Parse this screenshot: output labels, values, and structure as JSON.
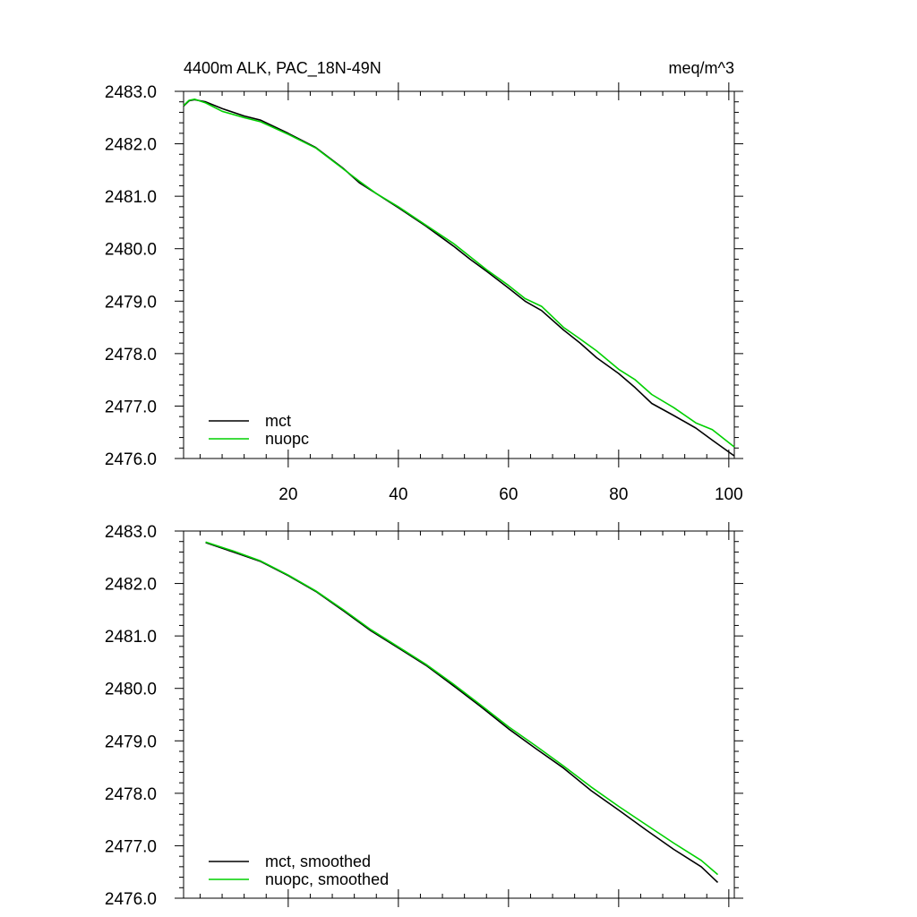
{
  "title_left": "4400m ALK, PAC_18N-49N",
  "title_right": "meq/m^3",
  "colors": {
    "mct": "#000000",
    "nuopc": "#00d000"
  },
  "chart_data": [
    {
      "type": "line",
      "title": "4400m ALK, PAC_18N-49N",
      "units": "meq/m^3",
      "xlim": [
        1,
        101
      ],
      "ylim": [
        2476.0,
        2483.0
      ],
      "xticks": [
        20,
        40,
        60,
        80,
        100
      ],
      "xtick_labels": [
        "20",
        "40",
        "60",
        "80",
        "100"
      ],
      "yticks": [
        2476.0,
        2477.0,
        2478.0,
        2479.0,
        2480.0,
        2481.0,
        2482.0,
        2483.0
      ],
      "ytick_labels": [
        "2476.0",
        "2477.0",
        "2478.0",
        "2479.0",
        "2480.0",
        "2481.0",
        "2482.0",
        "2483.0"
      ],
      "grid": false,
      "legend_position": "bottom-left",
      "series": [
        {
          "name": "mct",
          "color": "#000000",
          "points": [
            [
              1,
              2482.72
            ],
            [
              2,
              2482.82
            ],
            [
              3,
              2482.84
            ],
            [
              5,
              2482.8
            ],
            [
              8,
              2482.67
            ],
            [
              12,
              2482.53
            ],
            [
              15,
              2482.45
            ],
            [
              20,
              2482.2
            ],
            [
              25,
              2481.93
            ],
            [
              30,
              2481.53
            ],
            [
              33,
              2481.25
            ],
            [
              36,
              2481.05
            ],
            [
              40,
              2480.78
            ],
            [
              45,
              2480.43
            ],
            [
              50,
              2480.05
            ],
            [
              53,
              2479.8
            ],
            [
              56,
              2479.57
            ],
            [
              60,
              2479.25
            ],
            [
              63,
              2479.0
            ],
            [
              66,
              2478.82
            ],
            [
              70,
              2478.45
            ],
            [
              73,
              2478.2
            ],
            [
              76,
              2477.92
            ],
            [
              80,
              2477.62
            ],
            [
              83,
              2477.35
            ],
            [
              86,
              2477.05
            ],
            [
              90,
              2476.82
            ],
            [
              94,
              2476.58
            ],
            [
              97,
              2476.35
            ],
            [
              101,
              2476.05
            ]
          ]
        },
        {
          "name": "nuopc",
          "color": "#00d000",
          "points": [
            [
              1,
              2482.73
            ],
            [
              2,
              2482.83
            ],
            [
              3,
              2482.85
            ],
            [
              5,
              2482.78
            ],
            [
              8,
              2482.62
            ],
            [
              12,
              2482.5
            ],
            [
              15,
              2482.42
            ],
            [
              20,
              2482.18
            ],
            [
              25,
              2481.92
            ],
            [
              30,
              2481.52
            ],
            [
              33,
              2481.28
            ],
            [
              36,
              2481.05
            ],
            [
              40,
              2480.8
            ],
            [
              45,
              2480.45
            ],
            [
              50,
              2480.1
            ],
            [
              53,
              2479.85
            ],
            [
              56,
              2479.6
            ],
            [
              60,
              2479.3
            ],
            [
              63,
              2479.05
            ],
            [
              66,
              2478.9
            ],
            [
              70,
              2478.5
            ],
            [
              73,
              2478.28
            ],
            [
              76,
              2478.05
            ],
            [
              80,
              2477.7
            ],
            [
              83,
              2477.5
            ],
            [
              86,
              2477.22
            ],
            [
              90,
              2476.97
            ],
            [
              94,
              2476.68
            ],
            [
              97,
              2476.55
            ],
            [
              101,
              2476.22
            ]
          ]
        }
      ]
    },
    {
      "type": "line",
      "xlim": [
        1,
        101
      ],
      "ylim": [
        2476.0,
        2483.0
      ],
      "xticks": [
        20,
        40,
        60,
        80,
        100
      ],
      "yticks": [
        2476.0,
        2477.0,
        2478.0,
        2479.0,
        2480.0,
        2481.0,
        2482.0,
        2483.0
      ],
      "ytick_labels": [
        "2476.0",
        "2477.0",
        "2478.0",
        "2479.0",
        "2480.0",
        "2481.0",
        "2482.0",
        "2483.0"
      ],
      "grid": false,
      "legend_position": "bottom-left",
      "series": [
        {
          "name": "mct, smoothed",
          "color": "#000000",
          "points": [
            [
              5,
              2482.78
            ],
            [
              10,
              2482.6
            ],
            [
              15,
              2482.42
            ],
            [
              20,
              2482.15
            ],
            [
              25,
              2481.85
            ],
            [
              30,
              2481.48
            ],
            [
              35,
              2481.1
            ],
            [
              40,
              2480.77
            ],
            [
              45,
              2480.44
            ],
            [
              50,
              2480.05
            ],
            [
              55,
              2479.65
            ],
            [
              60,
              2479.23
            ],
            [
              65,
              2478.85
            ],
            [
              70,
              2478.48
            ],
            [
              75,
              2478.05
            ],
            [
              80,
              2477.68
            ],
            [
              85,
              2477.3
            ],
            [
              90,
              2476.93
            ],
            [
              95,
              2476.6
            ],
            [
              98,
              2476.3
            ]
          ]
        },
        {
          "name": "nuopc, smoothed",
          "color": "#00d000",
          "points": [
            [
              5,
              2482.79
            ],
            [
              10,
              2482.62
            ],
            [
              15,
              2482.43
            ],
            [
              20,
              2482.16
            ],
            [
              25,
              2481.86
            ],
            [
              30,
              2481.5
            ],
            [
              35,
              2481.12
            ],
            [
              40,
              2480.79
            ],
            [
              45,
              2480.46
            ],
            [
              50,
              2480.08
            ],
            [
              55,
              2479.68
            ],
            [
              60,
              2479.27
            ],
            [
              65,
              2478.9
            ],
            [
              70,
              2478.52
            ],
            [
              75,
              2478.12
            ],
            [
              80,
              2477.75
            ],
            [
              85,
              2477.4
            ],
            [
              90,
              2477.05
            ],
            [
              95,
              2476.72
            ],
            [
              98,
              2476.45
            ]
          ]
        }
      ]
    }
  ]
}
